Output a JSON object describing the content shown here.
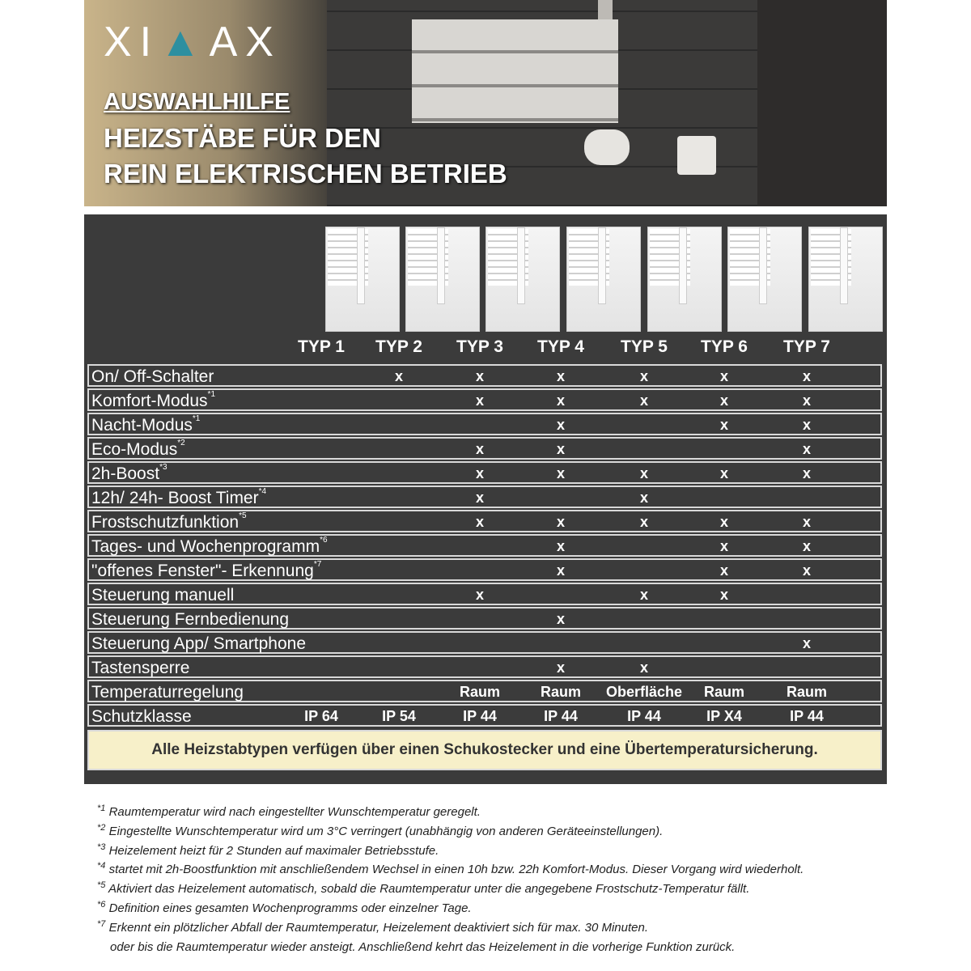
{
  "brand": {
    "logo": "XIMAX",
    "accent": "#2d8fa0"
  },
  "hero": {
    "line1": "AUSWAHLHILFE",
    "line2": "HEIZSTÄBE FÜR DEN",
    "line3": "REIN ELEKTRISCHEN BETRIEB"
  },
  "types": [
    "TYP 1",
    "TYP 2",
    "TYP 3",
    "TYP 4",
    "TYP 5",
    "TYP 6",
    "TYP 7"
  ],
  "rows": [
    {
      "label": "On/ Off-Schalter",
      "sup": "",
      "cells": [
        "",
        "x",
        "x",
        "x",
        "x",
        "x",
        "x"
      ]
    },
    {
      "label": "Komfort-Modus",
      "sup": "*1",
      "cells": [
        "",
        "",
        "x",
        "x",
        "x",
        "x",
        "x"
      ]
    },
    {
      "label": "Nacht-Modus",
      "sup": "*1",
      "cells": [
        "",
        "",
        "",
        "x",
        "",
        "x",
        "x"
      ]
    },
    {
      "label": "Eco-Modus",
      "sup": "*2",
      "cells": [
        "",
        "",
        "x",
        "x",
        "",
        "",
        "x"
      ]
    },
    {
      "label": "2h-Boost",
      "sup": "*3",
      "cells": [
        "",
        "",
        "x",
        "x",
        "x",
        "x",
        "x"
      ]
    },
    {
      "label": "12h/ 24h- Boost Timer",
      "sup": "*4",
      "cells": [
        "",
        "",
        "x",
        "",
        "x",
        "",
        ""
      ]
    },
    {
      "label": "Frostschutzfunktion",
      "sup": "*5",
      "cells": [
        "",
        "",
        "x",
        "x",
        "x",
        "x",
        "x"
      ]
    },
    {
      "label": "Tages- und Wochenprogramm",
      "sup": "*6",
      "cells": [
        "",
        "",
        "",
        "x",
        "",
        "x",
        "x"
      ]
    },
    {
      "label": "\"offenes Fenster\"- Erkennung",
      "sup": "*7",
      "cells": [
        "",
        "",
        "",
        "x",
        "",
        "x",
        "x"
      ]
    },
    {
      "label": "Steuerung manuell",
      "sup": "",
      "cells": [
        "",
        "",
        "x",
        "",
        "x",
        "x",
        ""
      ]
    },
    {
      "label": "Steuerung Fernbedienung",
      "sup": "",
      "cells": [
        "",
        "",
        "",
        "x",
        "",
        "",
        ""
      ]
    },
    {
      "label": "Steuerung App/ Smartphone",
      "sup": "",
      "cells": [
        "",
        "",
        "",
        "",
        "",
        "",
        "x"
      ]
    },
    {
      "label": "Tastensperre",
      "sup": "",
      "cells": [
        "",
        "",
        "",
        "x",
        "x",
        "",
        ""
      ]
    },
    {
      "label": "Temperaturregelung",
      "sup": "",
      "cells": [
        "",
        "",
        "Raum",
        "Raum",
        "Oberfläche",
        "Raum",
        "Raum"
      ]
    },
    {
      "label": "Schutzklasse",
      "sup": "",
      "cells": [
        "IP 64",
        "IP 54",
        "IP 44",
        "IP 44",
        "IP 44",
        "IP X4",
        "IP 44"
      ]
    }
  ],
  "note": "Alle Heizstabtypen verfügen über einen Schukostecker und eine Übertemperatursicherung.",
  "footnotes": [
    {
      "mark": "*1",
      "text": "Raumtemperatur wird nach eingestellter Wunschtemperatur geregelt."
    },
    {
      "mark": "*2",
      "text": "Eingestellte Wunschtemperatur wird um 3°C verringert (unabhängig von anderen Geräteeinstellungen)."
    },
    {
      "mark": "*3",
      "text": "Heizelement heizt für 2 Stunden auf maximaler Betriebsstufe."
    },
    {
      "mark": "*4",
      "text": "startet mit 2h-Boostfunktion mit anschließendem Wechsel in einen 10h bzw. 22h Komfort-Modus. Dieser Vorgang wird wiederholt."
    },
    {
      "mark": "*5",
      "text": "Aktiviert das Heizelement automatisch, sobald die Raumtemperatur unter die angegebene Frostschutz-Temperatur fällt."
    },
    {
      "mark": "*6",
      "text": "Definition eines gesamten Wochenprogramms oder einzelner Tage."
    },
    {
      "mark": "*7",
      "text": "Erkennt ein plötzlicher Abfall der Raumtemperatur, Heizelement deaktiviert sich für max. 30 Minuten."
    },
    {
      "mark": "",
      "text": "oder bis die Raumtemperatur wieder ansteigt. Anschließend kehrt das Heizelement in die vorherige Funktion zurück."
    }
  ]
}
